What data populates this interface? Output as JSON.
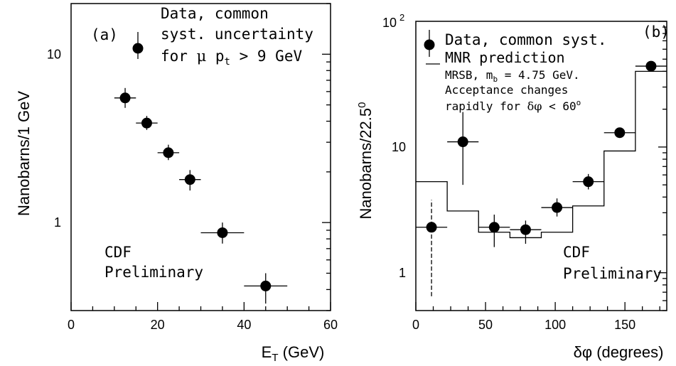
{
  "chart_data": [
    {
      "type": "scatter",
      "panel_label": "(a)",
      "xlabel_main": "E",
      "xlabel_sub": "T",
      "xlabel_unit": " (GeV)",
      "ylabel": "Nanobarns/1 GeV",
      "xlim": [
        0,
        60
      ],
      "ylim": [
        0.3,
        20
      ],
      "yscale": "log",
      "x_ticks": [
        0,
        20,
        40,
        60
      ],
      "y_ticks": [
        {
          "v": 1,
          "label": "1"
        },
        {
          "v": 10,
          "label": "10"
        }
      ],
      "legend": {
        "line1": "Data, common",
        "line2": "syst. uncertainty",
        "line3_pre": "for ",
        "line3_mu": "μ",
        "line3_p": " p",
        "line3_sub": "t",
        "line3_post": " > 9 GeV"
      },
      "annotation": [
        "CDF",
        "Preliminary"
      ],
      "points": [
        {
          "x": 12.5,
          "y": 5.5,
          "xerr": 2.5,
          "ylo": 4.8,
          "yhi": 6.3
        },
        {
          "x": 17.5,
          "y": 3.9,
          "xerr": 2.5,
          "ylo": 3.55,
          "yhi": 4.3
        },
        {
          "x": 22.5,
          "y": 2.6,
          "xerr": 2.5,
          "ylo": 2.35,
          "yhi": 2.9
        },
        {
          "x": 27.5,
          "y": 1.8,
          "xerr": 2.5,
          "ylo": 1.55,
          "yhi": 2.05
        },
        {
          "x": 35,
          "y": 0.87,
          "xerr": 5,
          "ylo": 0.75,
          "yhi": 1.0
        },
        {
          "x": 45,
          "y": 0.42,
          "xerr": 5,
          "ylo": 0.33,
          "yhi": 0.5
        }
      ]
    },
    {
      "type": "scatter",
      "panel_label": "(b)",
      "xlabel": "δφ (degrees)",
      "ylabel_main": "Nanobarns/22.5",
      "ylabel_sup": "0",
      "xlim": [
        0,
        180
      ],
      "ylim": [
        0.5,
        100
      ],
      "yscale": "log",
      "x_ticks": [
        0,
        50,
        100,
        150
      ],
      "y_ticks": [
        {
          "v": 1,
          "label": "1"
        },
        {
          "v": 10,
          "label": "10"
        }
      ],
      "top_label_base": "10",
      "top_label_exp": "2",
      "legend": {
        "data_label": "Data, common syst.",
        "mnr_label": "MNR prediction",
        "mrsb_pre": "MRSB, m",
        "mrsb_sub": "b",
        "mrsb_post": " = 4.75 GeV.",
        "accept_line1": "Acceptance changes",
        "accept_line2_pre": "rapidly for ",
        "accept_line2_dphi": "δφ",
        "accept_line2_post": " < 60",
        "accept_line2_sup": "o"
      },
      "annotation": [
        "CDF",
        "Preliminary"
      ],
      "points": [
        {
          "x": 11.25,
          "y": 2.3,
          "xerr": 11.25,
          "ylo": 0.65,
          "yhi": 3.8,
          "dashed": true
        },
        {
          "x": 33.75,
          "y": 11,
          "xerr": 11.25,
          "ylo": 5,
          "yhi": 19
        },
        {
          "x": 56.25,
          "y": 2.3,
          "xerr": 11.25,
          "ylo": 1.6,
          "yhi": 2.9
        },
        {
          "x": 78.75,
          "y": 2.2,
          "xerr": 11.25,
          "ylo": 1.7,
          "yhi": 2.6
        },
        {
          "x": 101.25,
          "y": 3.3,
          "xerr": 11.25,
          "ylo": 2.8,
          "yhi": 3.9
        },
        {
          "x": 123.75,
          "y": 5.3,
          "xerr": 11.25,
          "ylo": 4.6,
          "yhi": 6.1
        },
        {
          "x": 146.25,
          "y": 13,
          "xerr": 11.25,
          "ylo": 12.2,
          "yhi": 14
        },
        {
          "x": 168.75,
          "y": 44,
          "xerr": 11.25,
          "ylo": 42,
          "yhi": 46
        }
      ],
      "histogram": {
        "edges": [
          0,
          22.5,
          45,
          67.5,
          90,
          112.5,
          135,
          157.5,
          180
        ],
        "values": [
          5.3,
          3.1,
          2.1,
          1.9,
          2.1,
          3.4,
          9.3,
          40
        ]
      }
    }
  ]
}
